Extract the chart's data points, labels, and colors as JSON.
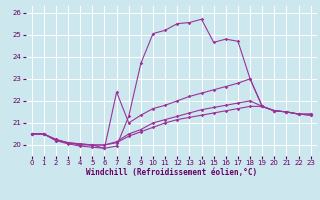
{
  "xlabel": "Windchill (Refroidissement éolien,°C)",
  "xlim": [
    -0.5,
    23.5
  ],
  "ylim": [
    19.5,
    26.3
  ],
  "yticks": [
    20,
    21,
    22,
    23,
    24,
    25,
    26
  ],
  "xticks": [
    0,
    1,
    2,
    3,
    4,
    5,
    6,
    7,
    8,
    9,
    10,
    11,
    12,
    13,
    14,
    15,
    16,
    17,
    18,
    19,
    20,
    21,
    22,
    23
  ],
  "background_color": "#cce8ee",
  "grid_color": "#ffffff",
  "line_color": "#993399",
  "lines": [
    {
      "x": [
        0,
        1,
        2,
        3,
        4,
        5,
        6,
        7,
        8,
        9,
        10,
        11,
        12,
        13,
        14,
        15,
        16,
        17,
        18,
        19,
        20,
        21,
        22,
        23
      ],
      "y": [
        20.5,
        20.5,
        20.2,
        20.1,
        20.0,
        20.0,
        19.85,
        19.95,
        21.3,
        23.7,
        25.05,
        25.2,
        25.5,
        25.55,
        25.7,
        24.65,
        24.8,
        24.7,
        23.0,
        21.75,
        21.55,
        21.5,
        21.4,
        21.4
      ]
    },
    {
      "x": [
        0,
        1,
        2,
        3,
        4,
        5,
        6,
        7,
        8,
        9,
        10,
        11,
        12,
        13,
        14,
        15,
        16,
        17,
        18,
        19,
        20,
        21,
        22,
        23
      ],
      "y": [
        20.5,
        20.5,
        20.2,
        20.05,
        19.95,
        19.9,
        19.85,
        22.4,
        21.0,
        21.35,
        21.65,
        21.8,
        22.0,
        22.2,
        22.35,
        22.5,
        22.65,
        22.8,
        23.0,
        21.75,
        21.55,
        21.5,
        21.4,
        21.4
      ]
    },
    {
      "x": [
        0,
        1,
        2,
        3,
        4,
        5,
        6,
        7,
        8,
        9,
        10,
        11,
        12,
        13,
        14,
        15,
        16,
        17,
        18,
        19,
        20,
        21,
        22,
        23
      ],
      "y": [
        20.5,
        20.5,
        20.25,
        20.1,
        20.05,
        20.0,
        20.0,
        20.15,
        20.5,
        20.7,
        21.0,
        21.15,
        21.3,
        21.45,
        21.6,
        21.7,
        21.8,
        21.9,
        22.0,
        21.75,
        21.55,
        21.5,
        21.4,
        21.35
      ]
    },
    {
      "x": [
        0,
        1,
        2,
        3,
        4,
        5,
        6,
        7,
        8,
        9,
        10,
        11,
        12,
        13,
        14,
        15,
        16,
        17,
        18,
        19,
        20,
        21,
        22,
        23
      ],
      "y": [
        20.5,
        20.5,
        20.25,
        20.1,
        20.05,
        20.0,
        20.0,
        20.1,
        20.4,
        20.6,
        20.8,
        21.0,
        21.15,
        21.25,
        21.35,
        21.45,
        21.55,
        21.65,
        21.75,
        21.75,
        21.55,
        21.5,
        21.4,
        21.35
      ]
    }
  ]
}
